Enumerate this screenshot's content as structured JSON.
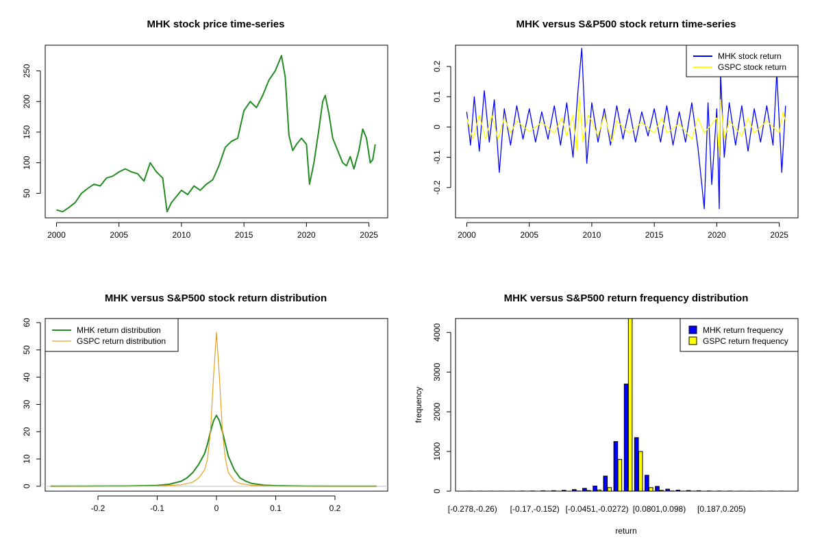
{
  "chart_data": [
    {
      "type": "line",
      "title": "MHK stock price time-series",
      "xlabel": "",
      "ylabel": "",
      "xlim": [
        1999.1,
        2026.5
      ],
      "ylim": [
        10,
        292
      ],
      "xticks": [
        2000,
        2005,
        2010,
        2015,
        2020,
        2025
      ],
      "yticks": [
        50,
        100,
        150,
        200,
        250
      ],
      "series": [
        {
          "name": "MHK",
          "color": "#228B22",
          "x": [
            2000.0,
            2000.5,
            2001.0,
            2001.5,
            2002.0,
            2002.5,
            2003.0,
            2003.5,
            2004.0,
            2004.5,
            2005.0,
            2005.5,
            2006.0,
            2006.5,
            2007.0,
            2007.5,
            2008.0,
            2008.5,
            2008.85,
            2009.2,
            2009.6,
            2010.0,
            2010.5,
            2011.0,
            2011.5,
            2012.0,
            2012.5,
            2013.0,
            2013.5,
            2014.0,
            2014.5,
            2015.0,
            2015.5,
            2016.0,
            2016.5,
            2017.0,
            2017.5,
            2018.0,
            2018.3,
            2018.6,
            2018.9,
            2019.2,
            2019.6,
            2020.0,
            2020.25,
            2020.6,
            2021.0,
            2021.3,
            2021.5,
            2021.8,
            2022.1,
            2022.5,
            2022.9,
            2023.2,
            2023.5,
            2023.8,
            2024.2,
            2024.5,
            2024.8,
            2025.1,
            2025.3,
            2025.5
          ],
          "y": [
            23,
            20,
            27,
            35,
            50,
            58,
            65,
            62,
            75,
            78,
            85,
            90,
            85,
            82,
            70,
            100,
            85,
            75,
            20,
            35,
            45,
            55,
            48,
            62,
            55,
            65,
            72,
            95,
            125,
            135,
            140,
            185,
            200,
            190,
            210,
            235,
            250,
            275,
            240,
            145,
            120,
            130,
            140,
            130,
            65,
            100,
            155,
            200,
            210,
            180,
            140,
            120,
            100,
            95,
            110,
            90,
            120,
            155,
            140,
            100,
            105,
            130
          ]
        }
      ]
    },
    {
      "type": "line",
      "title": "MHK versus S&P500 stock return time-series",
      "xlabel": "",
      "ylabel": "",
      "xlim": [
        1999.1,
        2026.5
      ],
      "ylim": [
        -0.3,
        0.27
      ],
      "xticks": [
        2000,
        2005,
        2010,
        2015,
        2020,
        2025
      ],
      "yticks": [
        -0.2,
        -0.1,
        0.0,
        0.1,
        0.2
      ],
      "series": [
        {
          "name": "MHK stock return",
          "color": "#0000FF",
          "x": [
            2000.0,
            2000.3,
            2000.6,
            2001.0,
            2001.4,
            2001.8,
            2002.2,
            2002.6,
            2003.0,
            2003.5,
            2004.0,
            2004.5,
            2005.0,
            2005.5,
            2006.0,
            2006.5,
            2007.0,
            2007.5,
            2008.0,
            2008.5,
            2008.9,
            2009.2,
            2009.6,
            2010.0,
            2010.5,
            2011.0,
            2011.5,
            2012.0,
            2012.5,
            2013.0,
            2013.5,
            2014.0,
            2014.5,
            2015.0,
            2015.5,
            2016.0,
            2016.5,
            2017.0,
            2017.5,
            2018.0,
            2018.5,
            2018.8,
            2019.0,
            2019.3,
            2019.6,
            2020.0,
            2020.2,
            2020.3,
            2020.6,
            2021.0,
            2021.5,
            2022.0,
            2022.5,
            2023.0,
            2023.5,
            2024.0,
            2024.5,
            2024.8,
            2025.2,
            2025.5
          ],
          "y": [
            0.05,
            -0.06,
            0.1,
            -0.08,
            0.12,
            -0.05,
            0.09,
            -0.15,
            0.06,
            -0.06,
            0.07,
            -0.04,
            0.06,
            -0.05,
            0.05,
            -0.04,
            0.07,
            -0.06,
            0.08,
            -0.1,
            0.12,
            0.26,
            -0.12,
            0.08,
            -0.05,
            0.06,
            -0.06,
            0.07,
            -0.04,
            0.06,
            -0.05,
            0.05,
            -0.03,
            0.06,
            -0.05,
            0.07,
            -0.06,
            0.05,
            -0.05,
            0.08,
            -0.07,
            -0.19,
            -0.27,
            0.08,
            -0.19,
            0.06,
            -0.27,
            0.18,
            -0.1,
            0.08,
            -0.06,
            0.07,
            -0.08,
            0.06,
            -0.05,
            0.07,
            -0.06,
            0.18,
            -0.15,
            0.07
          ]
        },
        {
          "name": "GSPC stock return",
          "color": "#FFFF00",
          "x": [
            2000.0,
            2000.5,
            2001.0,
            2001.5,
            2002.0,
            2002.5,
            2003.0,
            2003.5,
            2004.0,
            2005.0,
            2006.0,
            2007.0,
            2007.6,
            2008.0,
            2008.5,
            2008.8,
            2009.0,
            2009.3,
            2009.7,
            2010.0,
            2010.5,
            2011.0,
            2011.6,
            2012.0,
            2013.0,
            2014.0,
            2015.0,
            2015.6,
            2016.0,
            2017.0,
            2018.0,
            2018.5,
            2019.0,
            2020.0,
            2020.2,
            2020.3,
            2020.6,
            2021.0,
            2022.0,
            2022.5,
            2023.0,
            2024.0,
            2025.0,
            2025.3,
            2025.5
          ],
          "y": [
            0.03,
            -0.04,
            0.04,
            -0.04,
            0.04,
            -0.04,
            0.03,
            -0.02,
            0.02,
            -0.015,
            0.015,
            -0.02,
            0.03,
            -0.03,
            0.04,
            -0.08,
            0.1,
            -0.05,
            0.04,
            0.02,
            -0.03,
            0.04,
            -0.05,
            0.02,
            -0.02,
            0.015,
            -0.02,
            0.03,
            -0.02,
            0.01,
            -0.04,
            0.03,
            -0.02,
            0.03,
            -0.1,
            0.09,
            -0.04,
            0.02,
            -0.03,
            0.03,
            -0.02,
            0.02,
            -0.02,
            0.05,
            0.02
          ]
        }
      ],
      "legend": "top-right"
    },
    {
      "type": "line",
      "title": "MHK versus S&P500 stock return distribution",
      "xlabel": "",
      "ylabel": "",
      "xlim": [
        -0.289,
        0.289
      ],
      "ylim": [
        -1.8,
        61.5
      ],
      "xticks": [
        -0.2,
        -0.1,
        0.0,
        0.1,
        0.2
      ],
      "yticks": [
        0,
        10,
        20,
        30,
        40,
        50,
        60
      ],
      "series": [
        {
          "name": "MHK return distribution",
          "color": "#228B22",
          "x": [
            -0.28,
            -0.15,
            -0.1,
            -0.08,
            -0.06,
            -0.05,
            -0.04,
            -0.03,
            -0.02,
            -0.015,
            -0.01,
            -0.005,
            0.0,
            0.005,
            0.01,
            0.015,
            0.02,
            0.03,
            0.04,
            0.05,
            0.06,
            0.08,
            0.1,
            0.15,
            0.27
          ],
          "y": [
            0,
            0.1,
            0.3,
            0.7,
            1.8,
            3.0,
            5.0,
            8.0,
            12.0,
            15.5,
            20.0,
            24.0,
            26.0,
            24.0,
            20.0,
            15.5,
            11.0,
            6.0,
            3.0,
            1.8,
            1.0,
            0.4,
            0.2,
            0.05,
            0
          ]
        },
        {
          "name": "GSPC return distribution",
          "color": "#E6A020",
          "x": [
            -0.28,
            -0.1,
            -0.06,
            -0.04,
            -0.03,
            -0.02,
            -0.015,
            -0.01,
            -0.005,
            0.0,
            0.005,
            0.01,
            0.015,
            0.02,
            0.03,
            0.04,
            0.06,
            0.1,
            0.27
          ],
          "y": [
            0,
            0.1,
            0.5,
            1.5,
            3.0,
            6.0,
            10.0,
            20.0,
            40.0,
            56.5,
            40.0,
            20.0,
            10.0,
            5.0,
            2.0,
            1.0,
            0.3,
            0.05,
            0
          ]
        }
      ],
      "legend": "top-left"
    },
    {
      "type": "bar",
      "title": "MHK versus S&P500 return frequency distribution",
      "xlabel": "return",
      "ylabel": "frequency",
      "ylim": [
        0,
        4350
      ],
      "yticks": [
        0,
        1000,
        2000,
        3000,
        4000
      ],
      "tick_labels": [
        "[-0.278,-0.26)",
        "[-0.17,-0.152)",
        "[-0.0451,-0.0272)",
        "[0.0801,0.098)",
        "[0.187,0.205)"
      ],
      "categories_count": 31,
      "series": [
        {
          "name": "MHK return frequency",
          "color": "#0000FF",
          "values": [
            2,
            1,
            1,
            2,
            2,
            3,
            5,
            8,
            12,
            20,
            40,
            70,
            130,
            380,
            1250,
            2700,
            1350,
            400,
            120,
            50,
            25,
            15,
            10,
            6,
            4,
            3,
            2,
            2,
            1,
            1,
            2
          ]
        },
        {
          "name": "GSPC return frequency",
          "color": "#FFFF00",
          "values": [
            0,
            0,
            0,
            0,
            0,
            0,
            0,
            1,
            1,
            2,
            5,
            15,
            30,
            90,
            800,
            4400,
            1000,
            90,
            20,
            5,
            2,
            1,
            0,
            0,
            0,
            0,
            0,
            0,
            0,
            0,
            0
          ]
        }
      ],
      "legend": "top-right"
    }
  ]
}
